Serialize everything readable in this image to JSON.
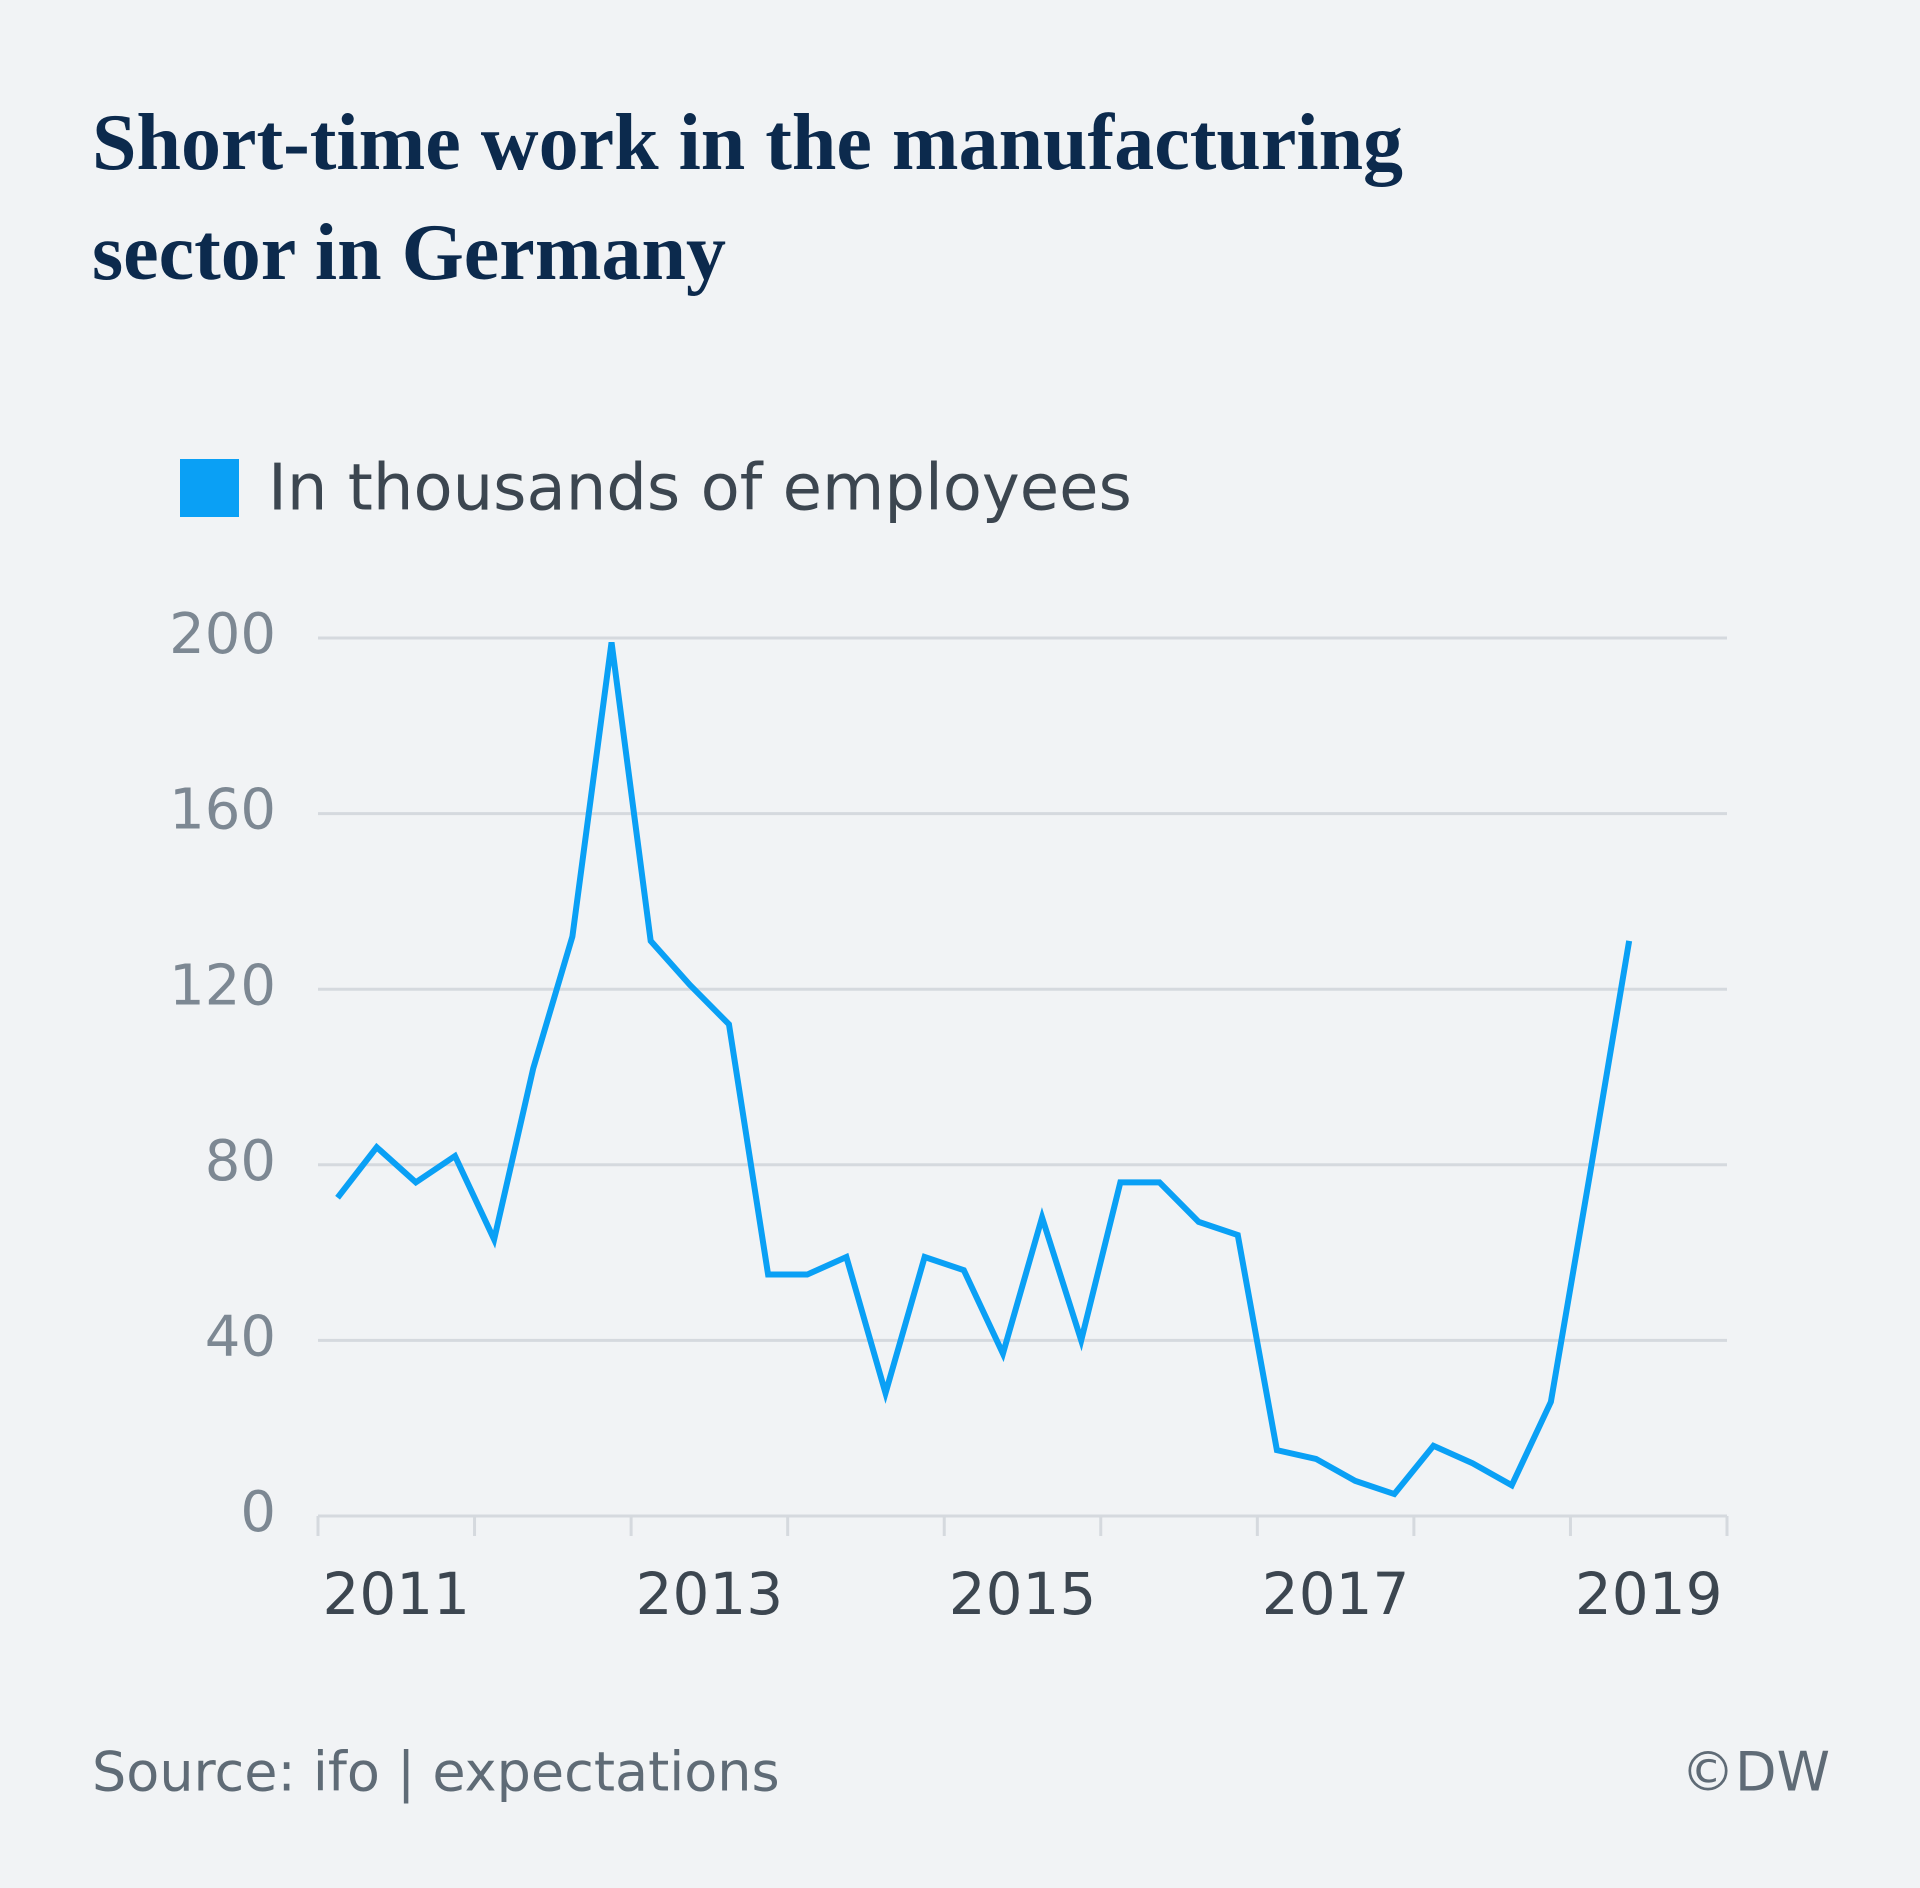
{
  "chart_data": {
    "type": "line",
    "title": "Short-time work in the manufacturing sector in Germany",
    "source": "Source: ifo | expectations",
    "credit": "©DW",
    "x": [
      2011.125,
      2011.375,
      2011.625,
      2011.875,
      2012.125,
      2012.375,
      2012.625,
      2012.875,
      2013.125,
      2013.375,
      2013.625,
      2013.875,
      2014.125,
      2014.375,
      2014.625,
      2014.875,
      2015.125,
      2015.375,
      2015.625,
      2015.875,
      2016.125,
      2016.375,
      2016.625,
      2016.875,
      2017.125,
      2017.375,
      2017.625,
      2017.875,
      2018.125,
      2018.375,
      2018.625,
      2018.875,
      2019.125,
      2019.375
    ],
    "series": [
      {
        "name": "In thousands of employees",
        "color": "#0aa0f5",
        "values": [
          72.5,
          84,
          76,
          82,
          63,
          102,
          132,
          199,
          131,
          121,
          112,
          55,
          55,
          59,
          28,
          59,
          56,
          37,
          68,
          40,
          76,
          76,
          67,
          64,
          15,
          13,
          8,
          5,
          16,
          12,
          7,
          26,
          78,
          131
        ]
      }
    ],
    "xlim": [
      2011,
      2020
    ],
    "xticks": [
      {
        "value": 2011.5,
        "label": "2011"
      },
      {
        "value": 2013.5,
        "label": "2013"
      },
      {
        "value": 2015.5,
        "label": "2015"
      },
      {
        "value": 2017.5,
        "label": "2017"
      },
      {
        "value": 2019.5,
        "label": "2019"
      }
    ],
    "xtick_marks": [
      2011,
      2012,
      2013,
      2014,
      2015,
      2016,
      2017,
      2018,
      2019,
      2020
    ],
    "ylim": [
      0,
      200
    ],
    "yticks": [
      0,
      40,
      80,
      120,
      160,
      200
    ],
    "grid": true
  }
}
